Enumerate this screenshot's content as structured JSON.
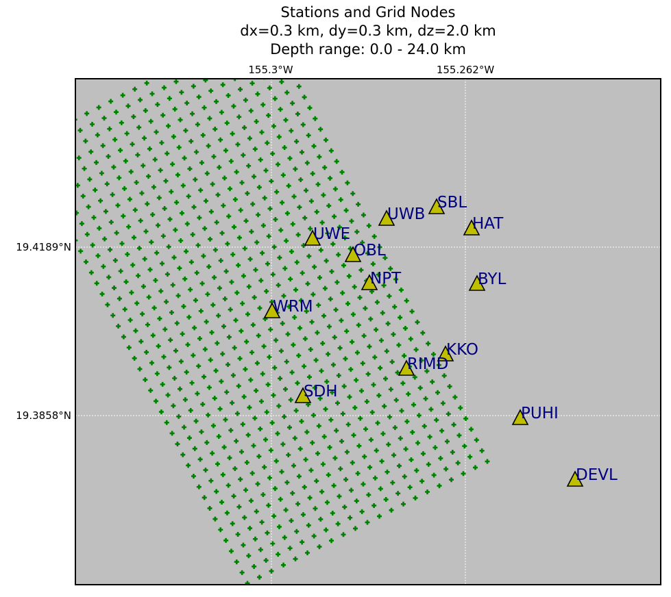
{
  "title": {
    "line1": "Stations and Grid Nodes",
    "line2": "dx=0.3 km, dy=0.3 km, dz=2.0 km",
    "line3": "Depth range: 0.0 - 24.0 km"
  },
  "axes": {
    "x_ticks": [
      {
        "label": "155.3°W",
        "value": -155.3
      },
      {
        "label": "155.262°W",
        "value": -155.262
      }
    ],
    "y_ticks": [
      {
        "label": "19.4189°N",
        "value": 19.4189
      },
      {
        "label": "19.3858°N",
        "value": 19.3858
      }
    ],
    "grid": true
  },
  "colors": {
    "map_background": "#bfbfbf",
    "grid_node": "#008000",
    "station_fill": "#bfbf00",
    "station_edge": "#000000",
    "station_label": "#000080",
    "graticule": "#ffffff"
  },
  "stations": [
    {
      "name": "SBL"
    },
    {
      "name": "UWB"
    },
    {
      "name": "HAT"
    },
    {
      "name": "UWE"
    },
    {
      "name": "OBL"
    },
    {
      "name": "NPT"
    },
    {
      "name": "BYL"
    },
    {
      "name": "WRM"
    },
    {
      "name": "KKO"
    },
    {
      "name": "RIMD"
    },
    {
      "name": "SDH"
    },
    {
      "name": "PUHI"
    },
    {
      "name": "DEVL"
    }
  ],
  "grid_nodes": {
    "symbol": "+",
    "rows": 42,
    "cols": 21,
    "note_visible": false
  }
}
